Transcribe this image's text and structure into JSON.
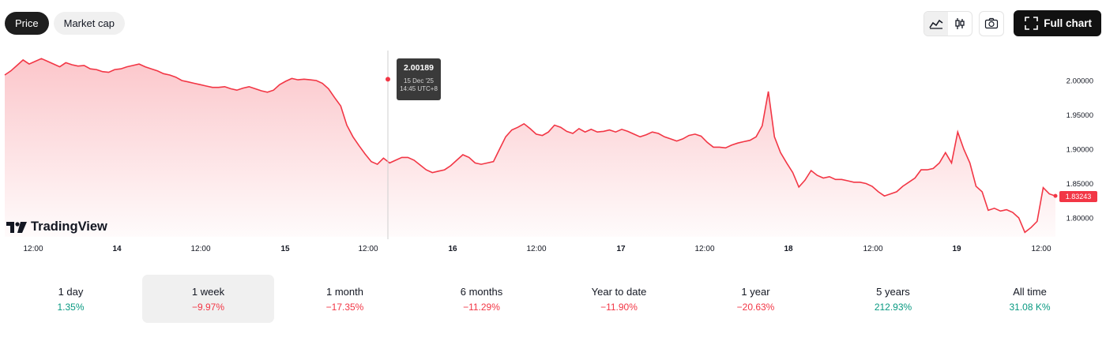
{
  "toggle": {
    "price": "Price",
    "market_cap": "Market cap"
  },
  "toolbar": {
    "full_chart": "Full chart"
  },
  "icons": {
    "area": "area-chart-icon",
    "candles": "candlestick-icon",
    "camera": "camera-icon",
    "expand": "fullscreen-icon"
  },
  "colors": {
    "line": "#f23645",
    "positive": "#089981",
    "negative": "#f23645"
  },
  "brand": "TradingView",
  "tooltip": {
    "value": "2.00189",
    "date": "15 Dec '25",
    "time": "14:45 UTC+8"
  },
  "last_price": "1.83243",
  "chart_data": {
    "type": "area",
    "x_ticks": [
      "12:00",
      "14",
      "12:00",
      "15",
      "12:00",
      "16",
      "12:00",
      "17",
      "12:00",
      "18",
      "12:00",
      "19",
      "12:00"
    ],
    "y_ticks": [
      "2.00000",
      "1.95000",
      "1.90000",
      "1.85000",
      "1.80000"
    ],
    "ylim": [
      1.77,
      2.04
    ],
    "grid": false,
    "values": [
      2.008,
      2.014,
      2.022,
      2.03,
      2.024,
      2.028,
      2.032,
      2.028,
      2.024,
      2.02,
      2.026,
      2.023,
      2.021,
      2.022,
      2.017,
      2.016,
      2.013,
      2.012,
      2.016,
      2.017,
      2.02,
      2.022,
      2.024,
      2.02,
      2.017,
      2.014,
      2.01,
      2.008,
      2.005,
      2.0,
      1.998,
      1.996,
      1.994,
      1.992,
      1.99,
      1.99,
      1.991,
      1.988,
      1.986,
      1.989,
      1.991,
      1.988,
      1.985,
      1.983,
      1.986,
      1.994,
      1.999,
      2.003,
      2.001,
      2.002,
      2.001,
      2.0,
      1.996,
      1.988,
      1.975,
      1.963,
      1.935,
      1.918,
      1.905,
      1.893,
      1.882,
      1.878,
      1.887,
      1.88,
      1.884,
      1.888,
      1.888,
      1.884,
      1.877,
      1.87,
      1.866,
      1.868,
      1.87,
      1.876,
      1.884,
      1.892,
      1.888,
      1.88,
      1.878,
      1.88,
      1.882,
      1.9,
      1.918,
      1.928,
      1.932,
      1.937,
      1.93,
      1.922,
      1.92,
      1.925,
      1.935,
      1.932,
      1.926,
      1.923,
      1.93,
      1.925,
      1.929,
      1.925,
      1.926,
      1.928,
      1.925,
      1.929,
      1.926,
      1.922,
      1.918,
      1.921,
      1.925,
      1.923,
      1.918,
      1.915,
      1.912,
      1.915,
      1.92,
      1.922,
      1.919,
      1.91,
      1.903,
      1.903,
      1.902,
      1.906,
      1.909,
      1.911,
      1.913,
      1.918,
      1.934,
      1.984,
      1.918,
      1.895,
      1.88,
      1.866,
      1.845,
      1.855,
      1.869,
      1.862,
      1.858,
      1.86,
      1.856,
      1.856,
      1.854,
      1.852,
      1.852,
      1.85,
      1.846,
      1.838,
      1.832,
      1.835,
      1.838,
      1.846,
      1.852,
      1.858,
      1.87,
      1.87,
      1.872,
      1.88,
      1.895,
      1.88,
      1.925,
      1.9,
      1.88,
      1.846,
      1.838,
      1.811,
      1.814,
      1.81,
      1.812,
      1.808,
      1.8,
      1.779,
      1.786,
      1.795,
      1.844,
      1.835,
      1.832
    ]
  },
  "periods": [
    {
      "label": "1 day",
      "value": "1.35%",
      "sign": "pos"
    },
    {
      "label": "1 week",
      "value": "−9.97%",
      "sign": "neg"
    },
    {
      "label": "1 month",
      "value": "−17.35%",
      "sign": "neg"
    },
    {
      "label": "6 months",
      "value": "−11.29%",
      "sign": "neg"
    },
    {
      "label": "Year to date",
      "value": "−11.90%",
      "sign": "neg"
    },
    {
      "label": "1 year",
      "value": "−20.63%",
      "sign": "neg"
    },
    {
      "label": "5 years",
      "value": "212.93%",
      "sign": "pos"
    },
    {
      "label": "All time",
      "value": "31.08 K%",
      "sign": "pos"
    }
  ]
}
